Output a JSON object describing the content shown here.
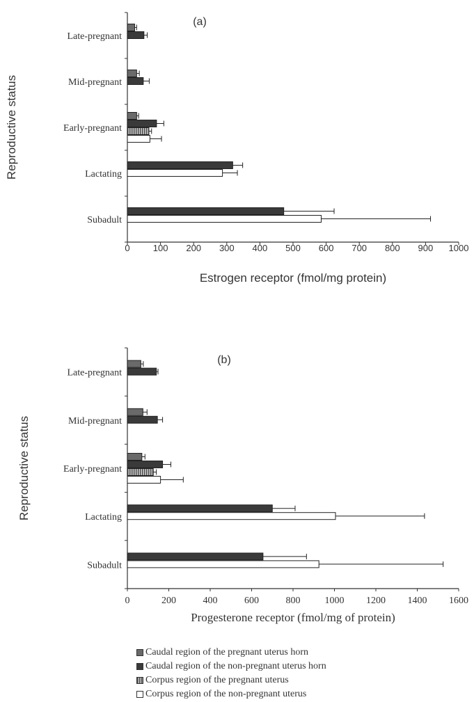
{
  "legend": [
    {
      "label": "Caudal region of the pregnant uterus horn",
      "fill": "#6a6a6a",
      "pattern": "solid"
    },
    {
      "label": "Caudal region of the non-pregnant uterus horn",
      "fill": "#3a3a3a",
      "pattern": "solid"
    },
    {
      "label": "Corpus region of the pregnant uterus",
      "fill": "#9a9a9a",
      "pattern": "vstripe"
    },
    {
      "label": "Corpus region of the non-pregnant uterus",
      "fill": "#ffffff",
      "pattern": "none"
    }
  ],
  "chart_data": [
    {
      "type": "bar",
      "orientation": "horizontal",
      "panel_label": "(a)",
      "xlabel": "Estrogen receptor (fmol/mg protein)",
      "ylabel": "Reproductive status",
      "xlim": [
        0,
        1000
      ],
      "xticks": [
        0,
        100,
        200,
        300,
        400,
        500,
        600,
        700,
        800,
        900,
        1000
      ],
      "categories": [
        "Late-pregnant",
        "Mid-pregnant",
        "Early-pregnant",
        "Lactating",
        "Subadult"
      ],
      "grid": false,
      "legend_position": "bottom",
      "series": [
        {
          "name": "Caudal region of the pregnant uterus horn",
          "values": [
            22,
            28,
            28,
            null,
            null
          ],
          "errors": [
            6,
            8,
            6,
            null,
            null
          ]
        },
        {
          "name": "Caudal region of the non-pregnant uterus horn",
          "values": [
            50,
            48,
            88,
            318,
            472
          ],
          "errors": [
            10,
            18,
            22,
            30,
            152
          ]
        },
        {
          "name": "Corpus region of the pregnant uterus",
          "values": [
            null,
            null,
            65,
            null,
            null
          ],
          "errors": [
            null,
            null,
            8,
            null,
            null
          ]
        },
        {
          "name": "Corpus region of the non-pregnant uterus",
          "values": [
            null,
            null,
            68,
            287,
            585
          ],
          "errors": [
            null,
            null,
            35,
            45,
            330
          ]
        }
      ]
    },
    {
      "type": "bar",
      "orientation": "horizontal",
      "panel_label": "(b)",
      "xlabel": "Progesterone receptor (fmol/mg of protein)",
      "ylabel": "Reproductive status",
      "xlim": [
        0,
        1600
      ],
      "xticks": [
        0,
        200,
        400,
        600,
        800,
        1000,
        1200,
        1400,
        1600
      ],
      "categories": [
        "Late-pregnant",
        "Mid-pregnant",
        "Early-pregnant",
        "Lactating",
        "Subadult"
      ],
      "grid": false,
      "legend_position": "bottom",
      "series": [
        {
          "name": "Caudal region of the pregnant uterus horn",
          "values": [
            65,
            75,
            70,
            null,
            null
          ],
          "errors": [
            12,
            20,
            15,
            null,
            null
          ]
        },
        {
          "name": "Caudal region of the non-pregnant uterus horn",
          "values": [
            140,
            145,
            170,
            700,
            655
          ],
          "errors": [
            8,
            25,
            40,
            110,
            210
          ]
        },
        {
          "name": "Corpus region of the pregnant uterus",
          "values": [
            null,
            null,
            125,
            null,
            null
          ],
          "errors": [
            null,
            null,
            15,
            null,
            null
          ]
        },
        {
          "name": "Corpus region of the non-pregnant uterus",
          "values": [
            null,
            null,
            160,
            1005,
            925
          ],
          "errors": [
            null,
            null,
            110,
            430,
            600
          ]
        }
      ]
    }
  ]
}
